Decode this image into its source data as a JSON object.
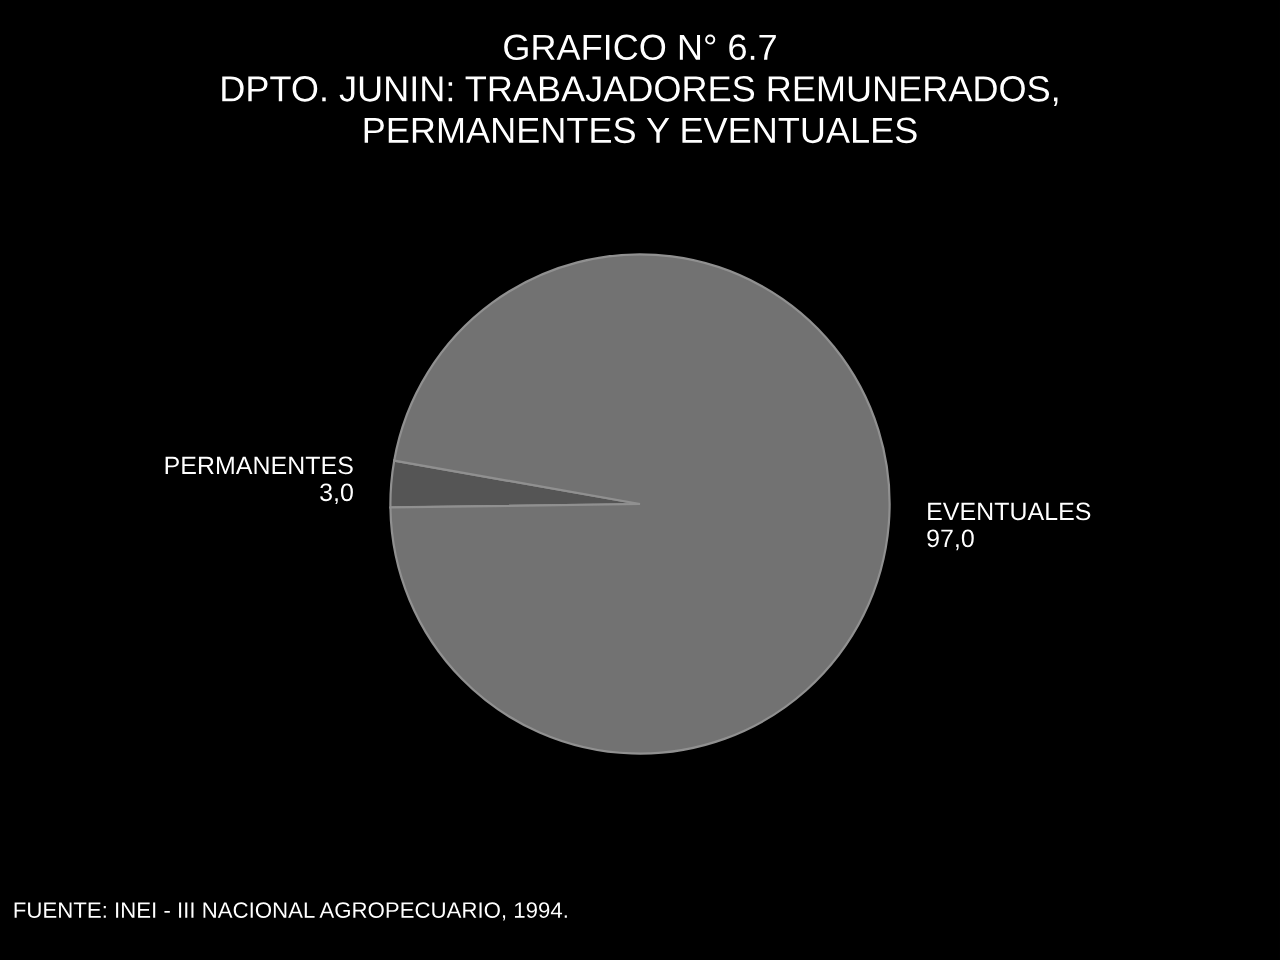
{
  "chart_data": {
    "type": "pie",
    "title": "GRAFICO N° 6.7\nDPTO. JUNIN: TRABAJADORES REMUNERADOS,\nPERMANENTES Y EVENTUALES",
    "categories": [
      "PERMANENTES",
      "EVENTUALES"
    ],
    "values": [
      3.0,
      97.0
    ],
    "value_labels": [
      "3,0",
      "97,0"
    ],
    "colors": [
      "#555555",
      "#727272"
    ],
    "annotations": [
      "FUENTE: INEI - III NACIONAL AGROPECUARIO, 1994."
    ]
  }
}
